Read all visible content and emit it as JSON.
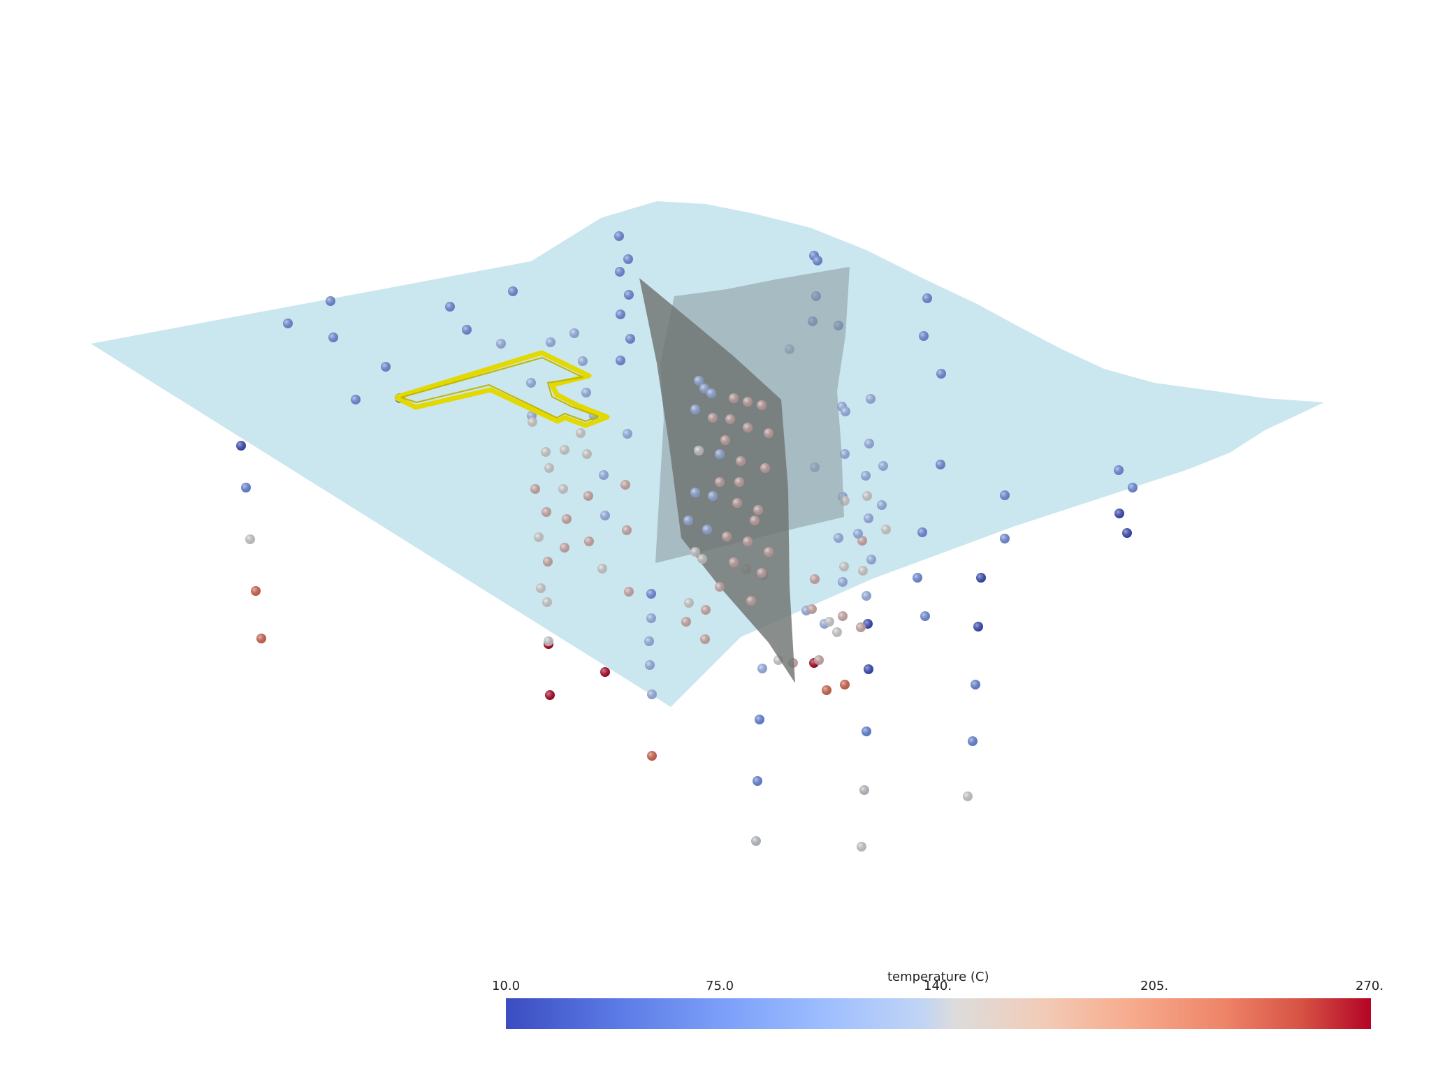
{
  "scene": {
    "surface_color": "#c6e4ee",
    "fault_plane_color": "#7f7f7f",
    "boundary_outline_color": "#e3d800"
  },
  "colorbar": {
    "title": "temperature (C)",
    "ticks": [
      "10.0",
      "75.0",
      "140.",
      "205.",
      "270."
    ],
    "colormap": "coolwarm",
    "min": 10.0,
    "max": 270.0
  }
}
